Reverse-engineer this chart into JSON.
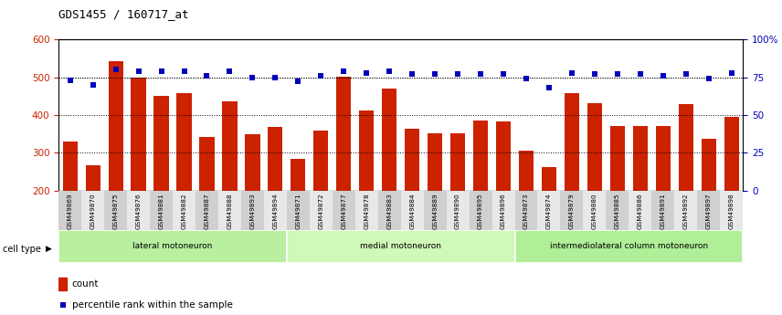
{
  "title": "GDS1455 / 160717_at",
  "samples": [
    "GSM49869",
    "GSM49870",
    "GSM49875",
    "GSM49876",
    "GSM49881",
    "GSM49882",
    "GSM49887",
    "GSM49888",
    "GSM49893",
    "GSM49894",
    "GSM49871",
    "GSM49872",
    "GSM49877",
    "GSM49878",
    "GSM49883",
    "GSM49884",
    "GSM49889",
    "GSM49890",
    "GSM49895",
    "GSM49896",
    "GSM49873",
    "GSM49874",
    "GSM49879",
    "GSM49880",
    "GSM49885",
    "GSM49886",
    "GSM49891",
    "GSM49892",
    "GSM49897",
    "GSM49898"
  ],
  "counts": [
    330,
    268,
    543,
    500,
    450,
    457,
    343,
    437,
    348,
    368,
    285,
    358,
    502,
    412,
    470,
    363,
    352,
    352,
    385,
    383,
    305,
    262,
    458,
    431,
    370,
    370,
    370,
    430,
    338,
    395
  ],
  "percentiles": [
    73,
    70,
    80,
    79,
    79,
    79,
    76,
    79,
    75,
    75,
    72,
    76,
    79,
    78,
    79,
    77,
    77,
    77,
    77,
    77,
    74,
    68,
    78,
    77,
    77,
    77,
    76,
    77,
    74,
    78
  ],
  "cell_types": [
    {
      "label": "lateral motoneuron",
      "start": 0,
      "end": 10,
      "color": "#b8f0a0"
    },
    {
      "label": "medial motoneuron",
      "start": 10,
      "end": 20,
      "color": "#d0f8b8"
    },
    {
      "label": "intermediolateral column motoneuron",
      "start": 20,
      "end": 30,
      "color": "#b0ee98"
    }
  ],
  "bar_color": "#cc2200",
  "dot_color": "#0000bb",
  "ylim_left": [
    200,
    600
  ],
  "ylim_right": [
    0,
    100
  ],
  "yticks_left": [
    200,
    300,
    400,
    500,
    600
  ],
  "yticks_right": [
    0,
    25,
    50,
    75,
    100
  ],
  "grid_yticks": [
    300,
    400,
    500
  ],
  "plot_bg": "#ffffff",
  "xtick_bg_odd": "#d0d0d0",
  "xtick_bg_even": "#e8e8e8"
}
